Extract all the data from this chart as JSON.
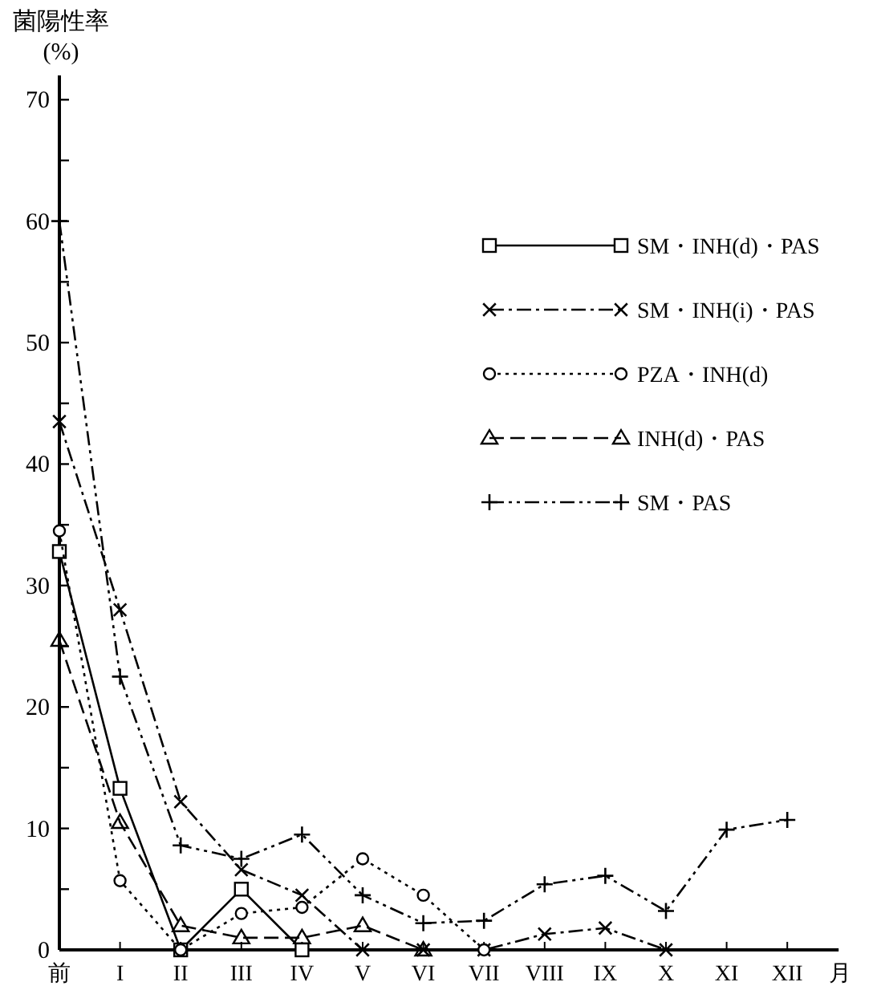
{
  "chart_data": {
    "type": "line",
    "ylabel": "菌陽性率\n(%)",
    "xlabel": "月",
    "categories": [
      "前",
      "I",
      "II",
      "III",
      "IV",
      "V",
      "VI",
      "VII",
      "VIII",
      "IX",
      "X",
      "XI",
      "XII"
    ],
    "ylim": [
      0,
      72
    ],
    "yticks": [
      0,
      {
        "value": 5,
        "label": null
      },
      10,
      {
        "value": 15,
        "label": null
      },
      20,
      {
        "value": 25,
        "label": null
      },
      30,
      {
        "value": 35,
        "label": null
      },
      40,
      {
        "value": 45,
        "label": null
      },
      50,
      {
        "value": 55,
        "label": null
      },
      60,
      {
        "value": 65,
        "label": null
      },
      70
    ],
    "grid": false,
    "legend": "top right",
    "series": [
      {
        "name": "SM・INH(d)・PAS",
        "color": "#000000",
        "marker": "square",
        "line_style": "solid",
        "values": [
          32.8,
          13.3,
          0,
          5,
          0,
          null,
          null,
          null,
          null,
          null,
          null,
          null,
          null
        ]
      },
      {
        "name": "SM・INH(i)・PAS",
        "color": "#000000",
        "marker": "x",
        "line_style": "dashdot",
        "values": [
          43.5,
          28,
          12.2,
          6.6,
          4.5,
          0,
          0,
          0,
          1.3,
          1.8,
          0,
          null,
          null
        ]
      },
      {
        "name": "PZA・INH(d)",
        "color": "#000000",
        "marker": "circle",
        "line_style": "dotted",
        "values": [
          34.5,
          5.7,
          0,
          3,
          3.5,
          7.5,
          4.5,
          0,
          null,
          null,
          null,
          null,
          null
        ]
      },
      {
        "name": "INH(d)・PAS",
        "color": "#000000",
        "marker": "triangle",
        "line_style": "dashed",
        "values": [
          25.5,
          10.5,
          2,
          1,
          1,
          2,
          0,
          null,
          null,
          null,
          null,
          null,
          null
        ]
      },
      {
        "name": "SM・PAS",
        "color": "#000000",
        "marker": "plus",
        "line_style": "dashdotdot",
        "values": [
          60,
          22.5,
          8.6,
          7.5,
          9.5,
          4.5,
          2.2,
          2.4,
          5.4,
          6.1,
          3.2,
          9.9,
          10.7
        ]
      }
    ]
  }
}
